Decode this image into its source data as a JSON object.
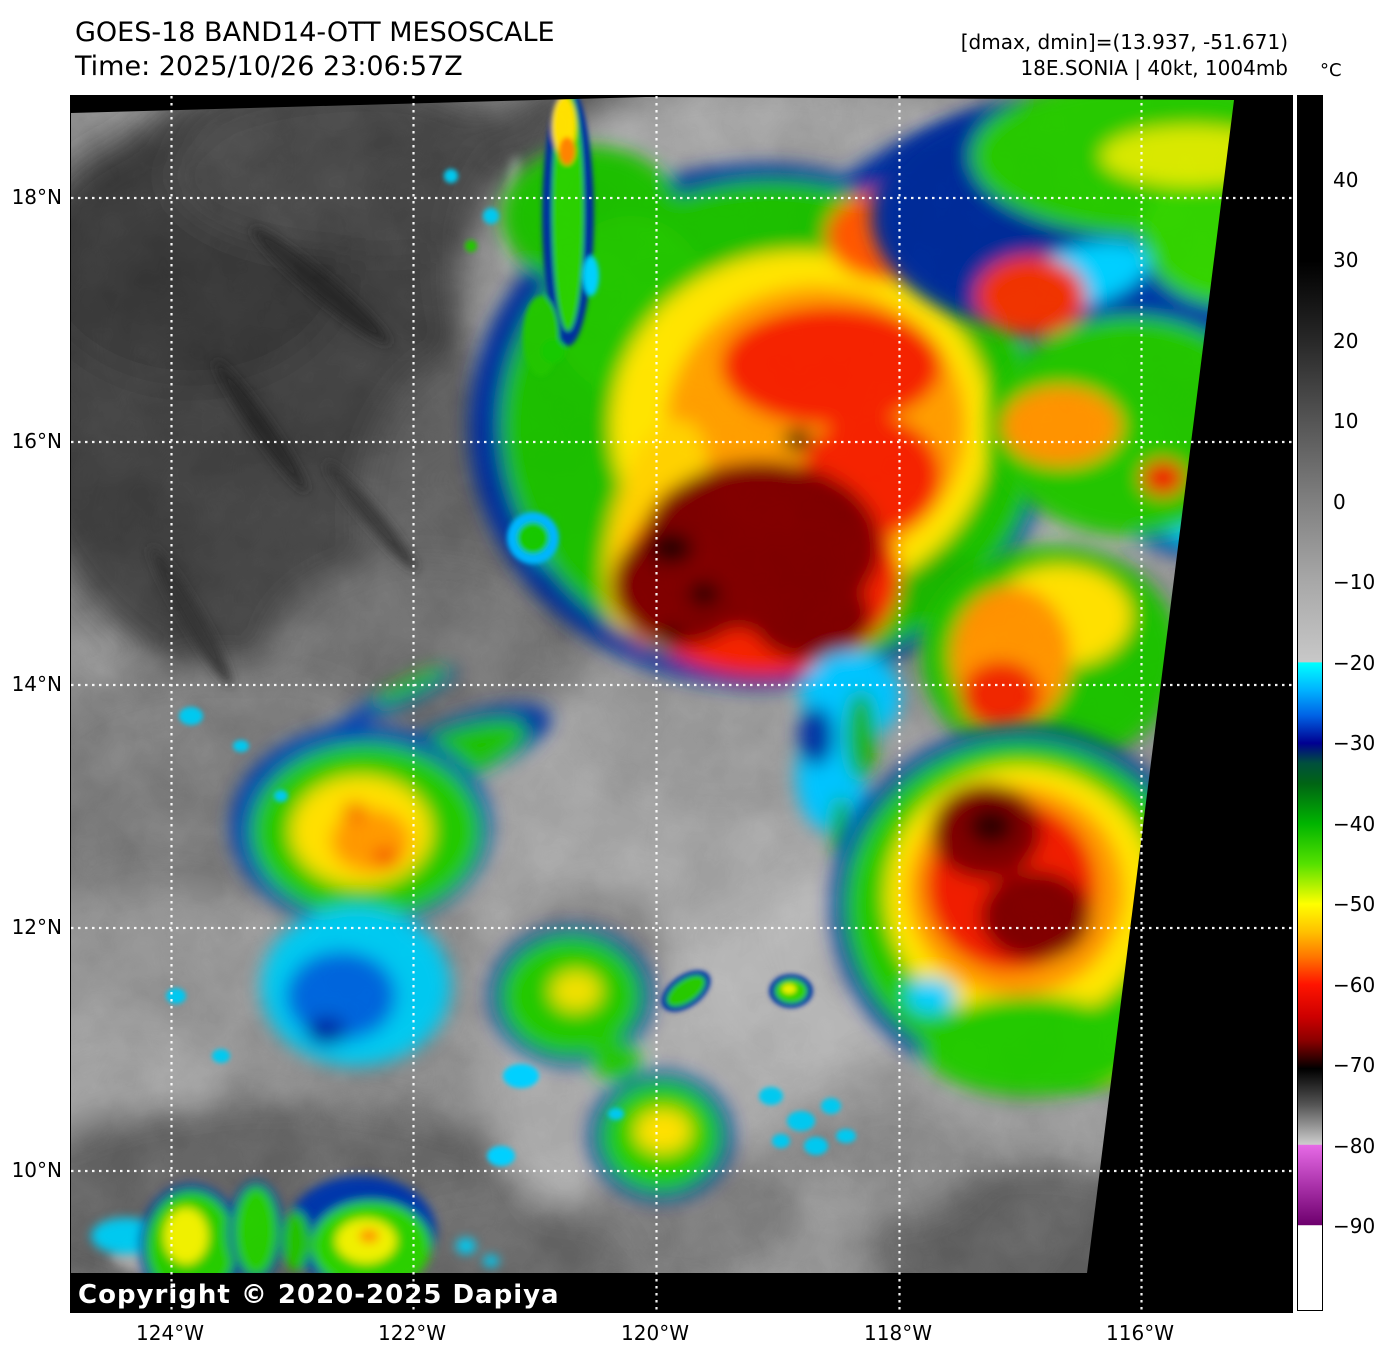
{
  "header": {
    "title": "GOES-18 BAND14-OTT MESOSCALE",
    "time_line": "Time: 2025/10/26 23:06:57Z",
    "dmax_dmin": "[dmax, dmin]=(13.937, -51.671)",
    "storm_info": "18E.SONIA | 40kt, 1004mb"
  },
  "colorbar": {
    "unit": "°C",
    "tick_values": [
      40,
      30,
      20,
      10,
      0,
      -10,
      -20,
      -30,
      -40,
      -50,
      -60,
      -70,
      -80,
      -90
    ],
    "tick_labels": [
      "40",
      "30",
      "20",
      "10",
      "0",
      "−10",
      "−20",
      "−30",
      "−40",
      "−50",
      "−60",
      "−70",
      "−80",
      "−90"
    ],
    "value_max": 50.5,
    "value_min": -100.5,
    "stops": [
      {
        "at": 50.5,
        "color": "#000000"
      },
      {
        "at": 30,
        "color": "#000000"
      },
      {
        "at": 20,
        "color": "#282828"
      },
      {
        "at": 10,
        "color": "#555555"
      },
      {
        "at": 0,
        "color": "#808080"
      },
      {
        "at": -10,
        "color": "#a8a8a8"
      },
      {
        "at": -19.9,
        "color": "#c8c8c8"
      },
      {
        "at": -20,
        "color": "#00ffff"
      },
      {
        "at": -23.5,
        "color": "#00b0ff"
      },
      {
        "at": -26.5,
        "color": "#0064e6"
      },
      {
        "at": -30,
        "color": "#000091"
      },
      {
        "at": -32.5,
        "color": "#00503c"
      },
      {
        "at": -35,
        "color": "#006414"
      },
      {
        "at": -40,
        "color": "#00b400"
      },
      {
        "at": -45,
        "color": "#55e100"
      },
      {
        "at": -50,
        "color": "#ffff00"
      },
      {
        "at": -53.5,
        "color": "#ffc000"
      },
      {
        "at": -56.5,
        "color": "#ff7800"
      },
      {
        "at": -60,
        "color": "#ff1400"
      },
      {
        "at": -64,
        "color": "#cd0000"
      },
      {
        "at": -67,
        "color": "#8b0000"
      },
      {
        "at": -70,
        "color": "#140000"
      },
      {
        "at": -70.5,
        "color": "#000000"
      },
      {
        "at": -75,
        "color": "#555555"
      },
      {
        "at": -79.9,
        "color": "#cdcdcd"
      },
      {
        "at": -80,
        "color": "#e66ae6"
      },
      {
        "at": -85,
        "color": "#aa32aa"
      },
      {
        "at": -89.9,
        "color": "#6e006e"
      },
      {
        "at": -90,
        "color": "#ffffff"
      },
      {
        "at": -100.5,
        "color": "#ffffff"
      }
    ]
  },
  "axes": {
    "lat_labels": [
      "18°N",
      "16°N",
      "14°N",
      "12°N",
      "10°N"
    ],
    "lon_labels": [
      "124°W",
      "122°W",
      "120°W",
      "118°W",
      "116°W"
    ]
  },
  "footer": {
    "copyright": "Copyright © 2020-2025 Dapiya"
  }
}
